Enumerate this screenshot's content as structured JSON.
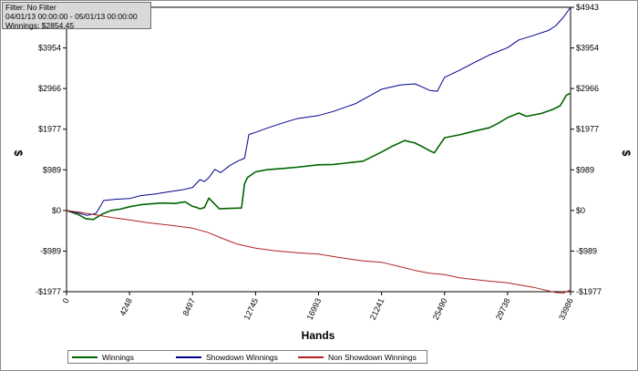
{
  "info": {
    "filter": "Filter: No Filter",
    "dates": "04/01/13 00:00:00 - 05/01/13 00:00:00",
    "winnings": "Winnings: $2854.45"
  },
  "chart_data": {
    "type": "line",
    "xlabel": "Hands",
    "ylabel": "$",
    "xlim": [
      0,
      33986
    ],
    "ylim": [
      -1977,
      4943
    ],
    "x_ticks": [
      0,
      4248,
      8497,
      12745,
      16993,
      21241,
      25490,
      29738,
      33986
    ],
    "x_tick_labels": [
      "0",
      "4248",
      "8497",
      "12745",
      "16993",
      "21241",
      "25490",
      "29738",
      "33986"
    ],
    "y_ticks": [
      -1977,
      -989,
      0,
      989,
      1977,
      2966,
      3954,
      4943
    ],
    "y_tick_labels": [
      "-$1977",
      "-$989",
      "$0",
      "$989",
      "$1977",
      "$2966",
      "$3954",
      "$4943"
    ],
    "zero_line": true,
    "legend_position": "bottom-left",
    "series": [
      {
        "name": "Winnings",
        "color": "#006400",
        "x": [
          0,
          800,
          1300,
          1800,
          2400,
          3000,
          3600,
          4248,
          5000,
          5700,
          6500,
          7300,
          8000,
          8497,
          8800,
          9000,
          9300,
          9600,
          10300,
          11000,
          11800,
          12000,
          12200,
          12745,
          13500,
          14500,
          15500,
          16993,
          18000,
          19000,
          20000,
          21241,
          22000,
          22800,
          23500,
          24000,
          24400,
          24800,
          25490,
          26500,
          27500,
          28500,
          29000,
          29738,
          30500,
          31000,
          32000,
          32800,
          33300,
          33700,
          33986
        ],
        "y": [
          0,
          -100,
          -200,
          -220,
          -90,
          0,
          30,
          90,
          140,
          160,
          180,
          170,
          210,
          100,
          70,
          40,
          70,
          300,
          40,
          50,
          60,
          650,
          800,
          940,
          990,
          1020,
          1050,
          1110,
          1120,
          1160,
          1200,
          1420,
          1570,
          1700,
          1640,
          1550,
          1470,
          1400,
          1770,
          1840,
          1930,
          2010,
          2100,
          2260,
          2370,
          2290,
          2360,
          2460,
          2550,
          2800,
          2854
        ]
      },
      {
        "name": "Showdown Winnings",
        "color": "#00008b",
        "x": [
          0,
          800,
          1400,
          2000,
          2500,
          3200,
          4248,
          5000,
          6000,
          7000,
          7800,
          8497,
          9000,
          9300,
          9600,
          10000,
          10400,
          11000,
          11600,
          12000,
          12300,
          12745,
          13500,
          14500,
          15500,
          16993,
          18000,
          19500,
          21241,
          22500,
          23500,
          24000,
          24500,
          25000,
          25490,
          26500,
          27500,
          28500,
          29738,
          30500,
          31500,
          32500,
          33000,
          33500,
          33986
        ],
        "y": [
          0,
          -60,
          -120,
          -70,
          240,
          270,
          290,
          360,
          400,
          460,
          500,
          560,
          750,
          700,
          800,
          1000,
          920,
          1090,
          1210,
          1270,
          1850,
          1900,
          2000,
          2120,
          2230,
          2310,
          2410,
          2600,
          2950,
          3050,
          3080,
          3000,
          2920,
          2900,
          3240,
          3410,
          3600,
          3780,
          3960,
          4150,
          4260,
          4380,
          4500,
          4700,
          4943
        ]
      },
      {
        "name": "Non Showdown Winnings",
        "color": "#b22222",
        "x": [
          0,
          1000,
          2000,
          3000,
          4248,
          5500,
          7000,
          8497,
          9500,
          10500,
          11500,
          12745,
          14000,
          15500,
          16993,
          18500,
          20000,
          21241,
          22500,
          23500,
          24500,
          25490,
          26500,
          27500,
          28500,
          29738,
          30500,
          31500,
          32300,
          33000,
          33500,
          33986
        ],
        "y": [
          0,
          -50,
          -110,
          -170,
          -230,
          -300,
          -360,
          -430,
          -530,
          -680,
          -820,
          -920,
          -980,
          -1030,
          -1060,
          -1150,
          -1230,
          -1260,
          -1370,
          -1460,
          -1530,
          -1560,
          -1640,
          -1680,
          -1720,
          -1760,
          -1810,
          -1870,
          -1940,
          -2000,
          -2010,
          -1930
        ]
      }
    ]
  }
}
